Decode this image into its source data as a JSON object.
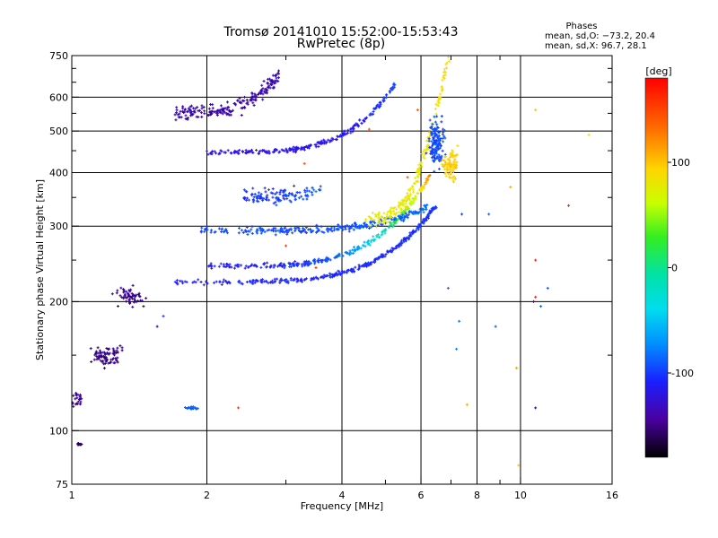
{
  "chart_data": {
    "type": "scatter",
    "title": "Tromsø 20141010 15:52:00-15:53:43",
    "subtitle": "RwPretec (8p)",
    "xlabel": "Frequency [MHz]",
    "ylabel": "Stationary phase Virtual Height [km]",
    "x_scale": "log",
    "y_scale": "log",
    "xlim": [
      1,
      16
    ],
    "ylim": [
      75,
      750
    ],
    "x_ticks": [
      1,
      2,
      4,
      6,
      8,
      10,
      16
    ],
    "x_tick_labels": [
      "1",
      "2",
      "4",
      "6",
      "8",
      "10",
      "16"
    ],
    "x_minor_ticks": [
      3,
      5,
      7,
      9
    ],
    "y_ticks": [
      75,
      100,
      200,
      300,
      400,
      500,
      600,
      750
    ],
    "y_tick_labels": [
      "75",
      "100",
      "200",
      "300",
      "400",
      "500",
      "600",
      "750"
    ],
    "y_minor_ticks": [
      150,
      250,
      350,
      450,
      550,
      650,
      700
    ],
    "grid": true,
    "phases_legend": {
      "heading": "Phases",
      "line_o": "mean, sd,O: −73.2, 20.4",
      "line_x": "mean, sd,X:  96.7, 28.1"
    },
    "colorbar": {
      "label": "[deg]",
      "range": [
        -180,
        180
      ],
      "ticks": [
        100,
        0,
        -100
      ],
      "tick_labels": [
        "100",
        "0",
        "-100"
      ],
      "colormap": "rainbow"
    },
    "traces": [
      {
        "f0": 1.7,
        "f1": 6.5,
        "h0": 218,
        "curve": 1.0,
        "rise": 0.18,
        "phase0": -115,
        "phase1": -110,
        "n": 340,
        "spread": 0.018
      },
      {
        "f0": 2.0,
        "f1": 6.3,
        "h0": 238,
        "curve": 1.0,
        "rise": 0.22,
        "phase0": -118,
        "phase1": 140,
        "n": 300,
        "spread": 0.02
      },
      {
        "f0": 1.9,
        "f1": 6.2,
        "h0": 290,
        "curve": 0.6,
        "rise": 0.05,
        "phase0": -105,
        "phase1": -95,
        "n": 260,
        "spread": 0.03
      },
      {
        "f0": 2.0,
        "f1": 5.3,
        "h0": 440,
        "curve": 0.8,
        "rise": 0.16,
        "phase0": -125,
        "phase1": -105,
        "n": 240,
        "spread": 0.02
      },
      {
        "f0": 1.7,
        "f1": 2.9,
        "h0": 550,
        "curve": 0.3,
        "rise": 0.08,
        "phase0": -145,
        "phase1": -140,
        "n": 200,
        "spread": 0.06
      },
      {
        "f0": 4.5,
        "f1": 7.2,
        "h0": 300,
        "curve": 1.8,
        "rise": 0.7,
        "phase0": 80,
        "phase1": 110,
        "n": 220,
        "spread": 0.06
      },
      {
        "f0": 2.4,
        "f1": 3.6,
        "h0": 350,
        "curve": 0.2,
        "rise": 0.02,
        "phase0": -110,
        "phase1": -100,
        "n": 120,
        "spread": 0.06
      }
    ],
    "clusters": [
      {
        "f": 1.2,
        "h": 150,
        "df": 0.12,
        "dh": 0.08,
        "phase": -150,
        "n": 80
      },
      {
        "f": 1.35,
        "h": 205,
        "df": 0.1,
        "dh": 0.07,
        "phase": -150,
        "n": 60
      },
      {
        "f": 1.03,
        "h": 118,
        "df": 0.04,
        "dh": 0.06,
        "phase": -150,
        "n": 25
      },
      {
        "f": 1.04,
        "h": 93,
        "df": 0.02,
        "dh": 0.01,
        "phase": -160,
        "n": 15
      },
      {
        "f": 1.85,
        "h": 113,
        "df": 0.04,
        "dh": 0.01,
        "phase": -100,
        "n": 25
      },
      {
        "f": 6.5,
        "h": 470,
        "df": 0.06,
        "dh": 0.18,
        "phase": -105,
        "n": 140
      },
      {
        "f": 7.0,
        "h": 420,
        "df": 0.06,
        "dh": 0.12,
        "phase": 105,
        "n": 90
      }
    ],
    "scattered_points": [
      {
        "f": 7.4,
        "h": 320,
        "phase": -110
      },
      {
        "f": 7.6,
        "h": 115,
        "phase": 120
      },
      {
        "f": 9.5,
        "h": 370,
        "phase": 120
      },
      {
        "f": 9.8,
        "h": 140,
        "phase": 120
      },
      {
        "f": 9.9,
        "h": 83,
        "phase": 110
      },
      {
        "f": 10.8,
        "h": 560,
        "phase": 110
      },
      {
        "f": 10.8,
        "h": 250,
        "phase": 170
      },
      {
        "f": 10.8,
        "h": 205,
        "phase": 170
      },
      {
        "f": 10.7,
        "h": 200,
        "phase": -150
      },
      {
        "f": 10.8,
        "h": 113,
        "phase": -150
      },
      {
        "f": 11.5,
        "h": 215,
        "phase": -105
      },
      {
        "f": 11.1,
        "h": 195,
        "phase": -100
      },
      {
        "f": 12.8,
        "h": 335,
        "phase": 170
      },
      {
        "f": 14.2,
        "h": 490,
        "phase": 100
      },
      {
        "f": 8.5,
        "h": 320,
        "phase": -100
      },
      {
        "f": 6.9,
        "h": 215,
        "phase": -100
      },
      {
        "f": 8.8,
        "h": 175,
        "phase": -100
      },
      {
        "f": 7.3,
        "h": 180,
        "phase": -90
      },
      {
        "f": 7.2,
        "h": 155,
        "phase": -90
      },
      {
        "f": 2.35,
        "h": 113,
        "phase": 160
      },
      {
        "f": 1.6,
        "h": 185,
        "phase": -110
      },
      {
        "f": 1.55,
        "h": 175,
        "phase": -140
      },
      {
        "f": 5.9,
        "h": 560,
        "phase": 150
      },
      {
        "f": 5.6,
        "h": 390,
        "phase": 150
      },
      {
        "f": 4.6,
        "h": 505,
        "phase": 150
      },
      {
        "f": 3.3,
        "h": 420,
        "phase": 150
      },
      {
        "f": 3.5,
        "h": 240,
        "phase": 160
      },
      {
        "f": 3.0,
        "h": 270,
        "phase": 160
      }
    ]
  }
}
